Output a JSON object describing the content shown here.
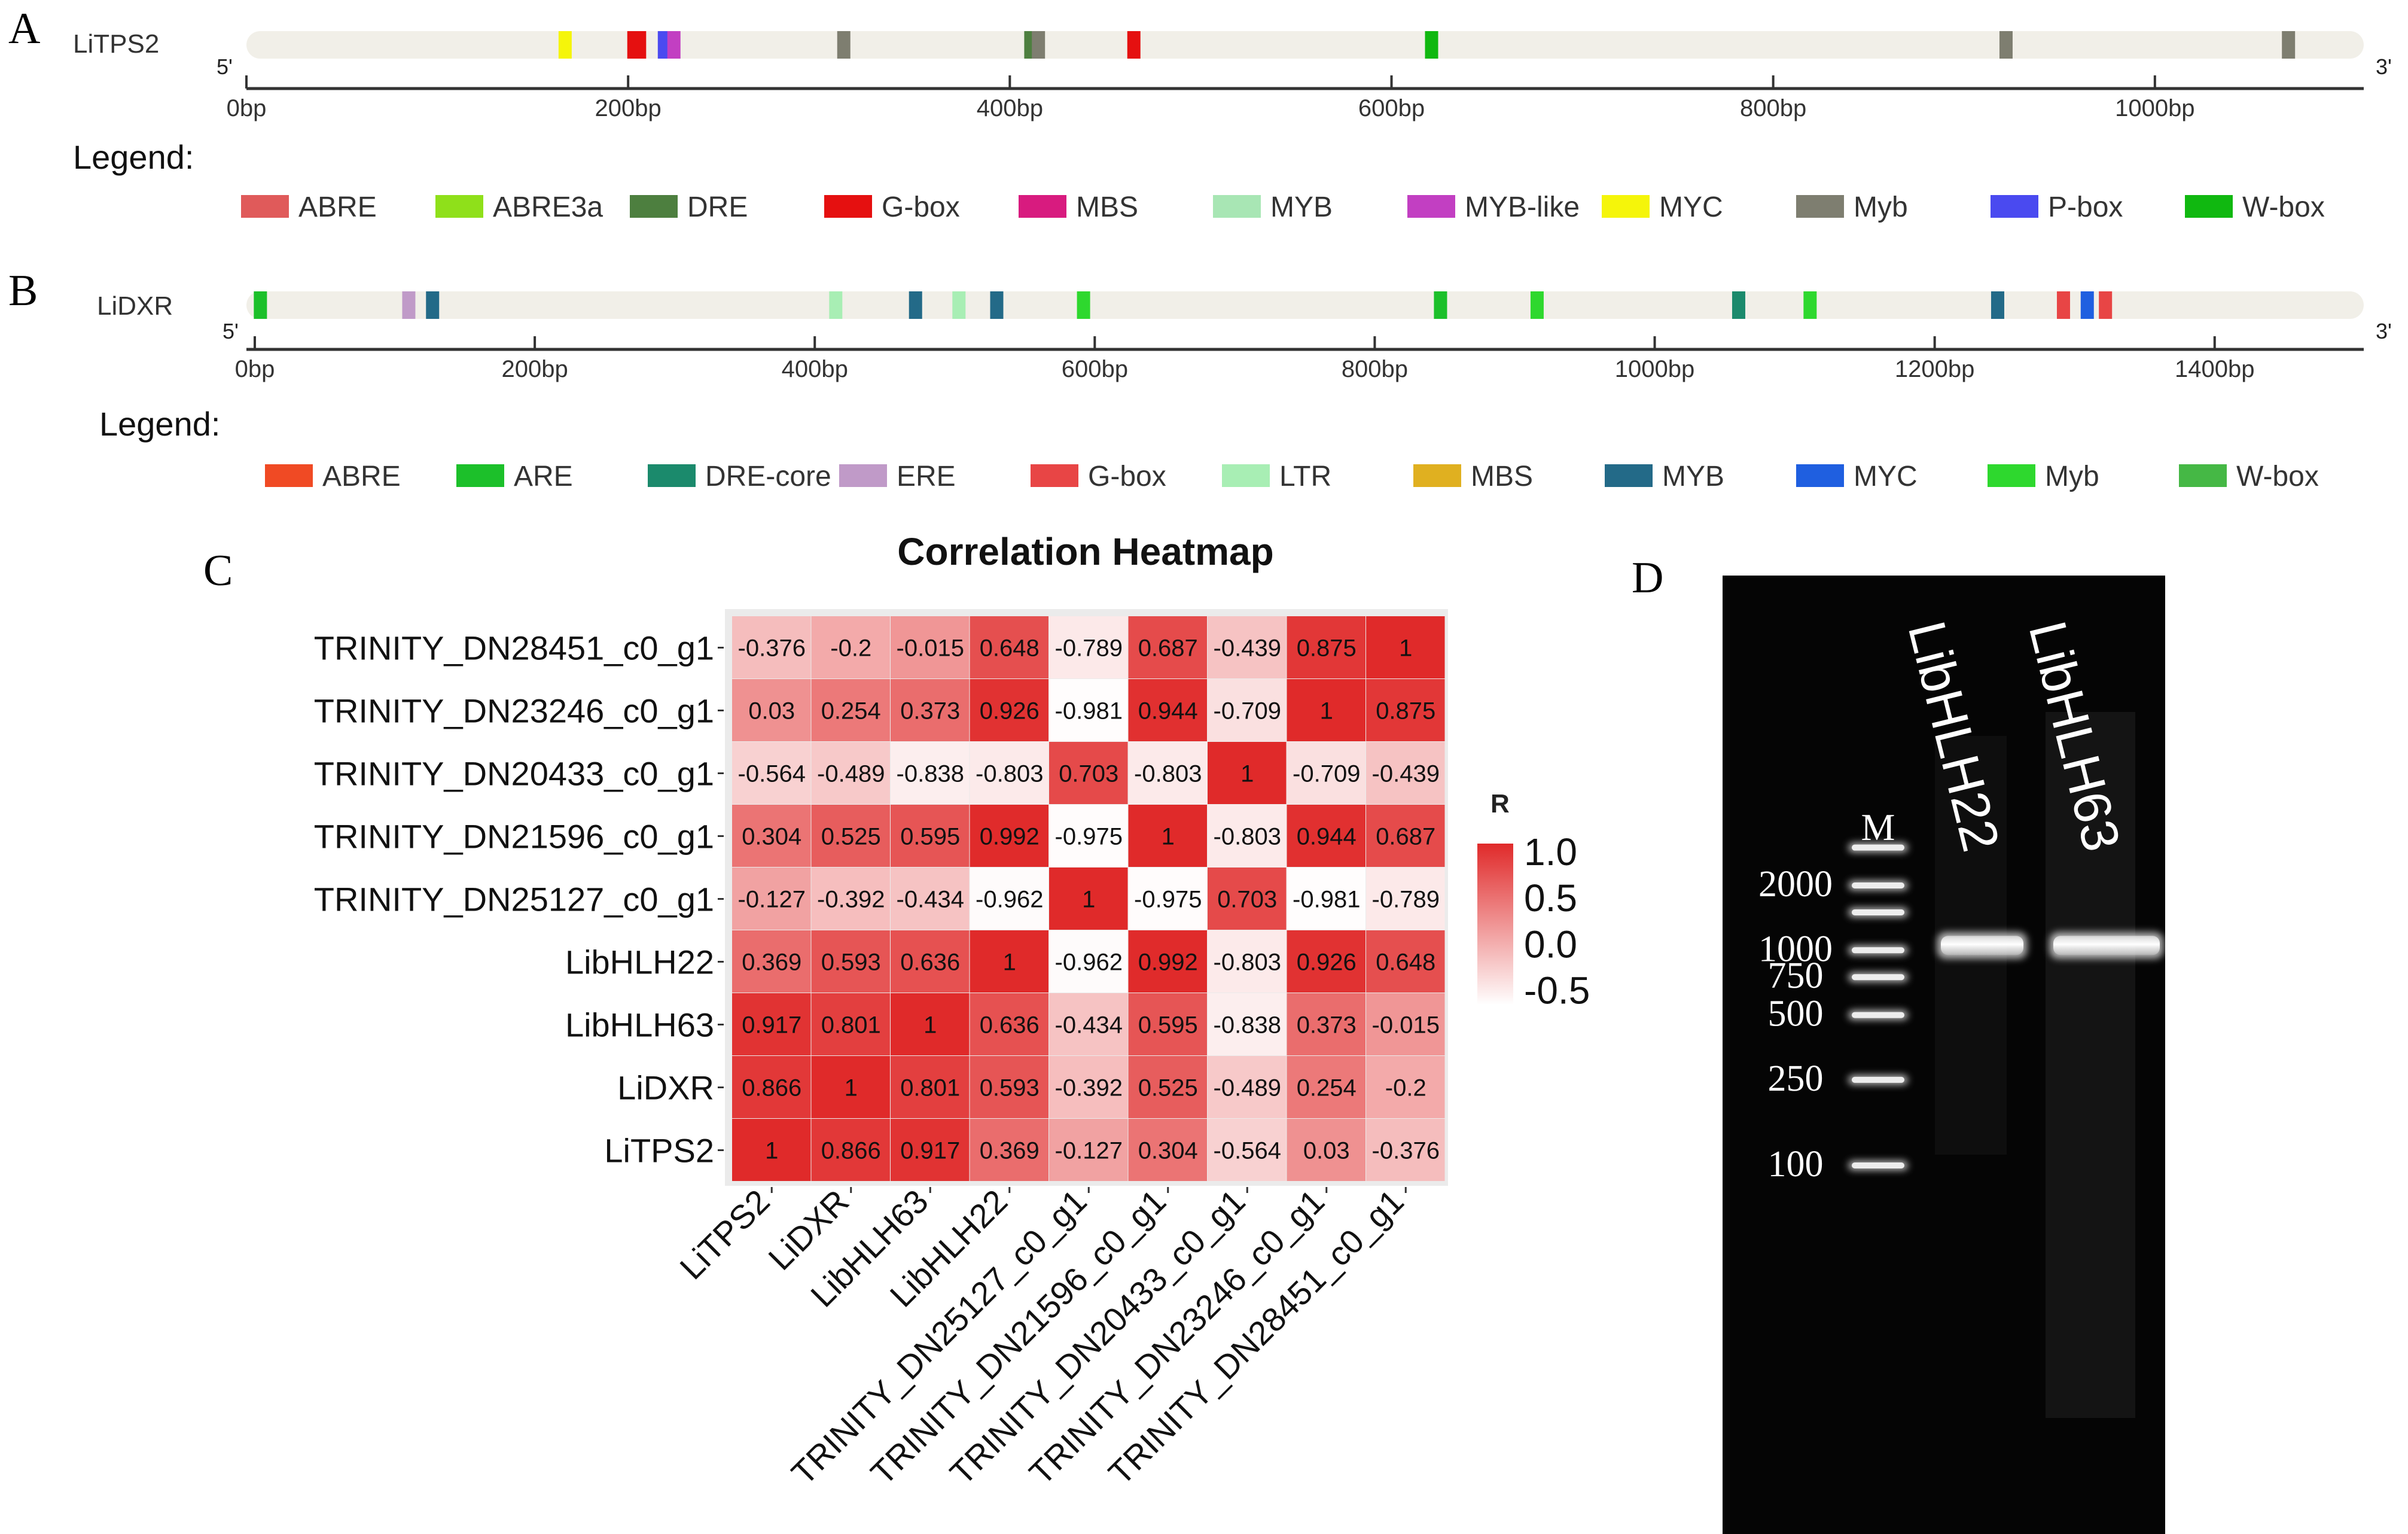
{
  "panels": {
    "A": "A",
    "B": "B",
    "C": "C",
    "D": "D"
  },
  "chart_data": [
    {
      "type": "promoter-map",
      "panel": "A",
      "gene": "LiTPS2",
      "five_prime": "5'",
      "three_prime": "3'",
      "length_bp": 1090,
      "ticks": [
        0,
        200,
        400,
        600,
        800,
        1000
      ],
      "tick_labels": [
        "0bp",
        "200bp",
        "400bp",
        "600bp",
        "800bp",
        "1000bp"
      ],
      "legend_title": "Legend:",
      "legend": [
        {
          "name": "ABRE",
          "color": "#e05a5a"
        },
        {
          "name": "ABRE3a",
          "color": "#8fe01a"
        },
        {
          "name": "DRE",
          "color": "#4d7f3f"
        },
        {
          "name": "G-box",
          "color": "#e51010"
        },
        {
          "name": "MBS",
          "color": "#d81b7f"
        },
        {
          "name": "MYB",
          "color": "#a8e6b4"
        },
        {
          "name": "MYB-like",
          "color": "#c23fc2"
        },
        {
          "name": "MYC",
          "color": "#f5f50a"
        },
        {
          "name": "Myb",
          "color": "#7e7e70"
        },
        {
          "name": "P-box",
          "color": "#4a4af0"
        },
        {
          "name": "W-box",
          "color": "#10b810"
        }
      ],
      "elements": [
        {
          "name": "MYC",
          "pos": 167
        },
        {
          "name": "G-box",
          "pos": 203
        },
        {
          "name": "G-box",
          "pos": 206
        },
        {
          "name": "P-box",
          "pos": 219
        },
        {
          "name": "MYB-like",
          "pos": 224
        },
        {
          "name": "Myb",
          "pos": 313
        },
        {
          "name": "DRE",
          "pos": 411
        },
        {
          "name": "Myb",
          "pos": 415
        },
        {
          "name": "G-box",
          "pos": 465
        },
        {
          "name": "W-box",
          "pos": 621
        },
        {
          "name": "Myb",
          "pos": 922
        },
        {
          "name": "Myb",
          "pos": 1070
        }
      ]
    },
    {
      "type": "promoter-map",
      "panel": "B",
      "gene": "LiDXR",
      "five_prime": "5'",
      "three_prime": "3'",
      "length_bp": 1480,
      "ticks": [
        0,
        200,
        400,
        600,
        800,
        1000,
        1200,
        1400
      ],
      "tick_labels": [
        "0bp",
        "200bp",
        "400bp",
        "600bp",
        "800bp",
        "1000bp",
        "1200bp",
        "1400bp"
      ],
      "legend_title": "Legend:",
      "legend": [
        {
          "name": "ABRE",
          "color": "#f04a24"
        },
        {
          "name": "ARE",
          "color": "#1cc02a"
        },
        {
          "name": "DRE-core",
          "color": "#1b8a6c"
        },
        {
          "name": "ERE",
          "color": "#c09ac8"
        },
        {
          "name": "G-box",
          "color": "#e84545"
        },
        {
          "name": "LTR",
          "color": "#a8eeb4"
        },
        {
          "name": "MBS",
          "color": "#e0b020"
        },
        {
          "name": "MYB",
          "color": "#236a88"
        },
        {
          "name": "MYC",
          "color": "#1f5fe0"
        },
        {
          "name": "Myb",
          "color": "#2ed82e"
        },
        {
          "name": "W-box",
          "color": "#45b845"
        }
      ],
      "elements": [
        {
          "name": "ARE",
          "pos": 4
        },
        {
          "name": "ERE",
          "pos": 110
        },
        {
          "name": "MYB",
          "pos": 127
        },
        {
          "name": "LTR",
          "pos": 415
        },
        {
          "name": "MYB",
          "pos": 472
        },
        {
          "name": "LTR",
          "pos": 503
        },
        {
          "name": "MYB",
          "pos": 530
        },
        {
          "name": "Myb",
          "pos": 592
        },
        {
          "name": "ARE",
          "pos": 847
        },
        {
          "name": "Myb",
          "pos": 916
        },
        {
          "name": "DRE-core",
          "pos": 1060
        },
        {
          "name": "Myb",
          "pos": 1111
        },
        {
          "name": "MYB",
          "pos": 1245
        },
        {
          "name": "G-box",
          "pos": 1292
        },
        {
          "name": "MYC",
          "pos": 1309
        },
        {
          "name": "G-box",
          "pos": 1322
        }
      ]
    },
    {
      "type": "heatmap",
      "panel": "C",
      "title": "Correlation Heatmap",
      "row_labels": [
        "TRINITY_DN28451_c0_g1",
        "TRINITY_DN23246_c0_g1",
        "TRINITY_DN20433_c0_g1",
        "TRINITY_DN21596_c0_g1",
        "TRINITY_DN25127_c0_g1",
        "LibHLH22",
        "LibHLH63",
        "LiDXR",
        "LiTPS2"
      ],
      "col_labels": [
        "LiTPS2",
        "LiDXR",
        "LibHLH63",
        "LibHLH22",
        "TRINITY_DN25127_c0_g1",
        "TRINITY_DN21596_c0_g1",
        "TRINITY_DN20433_c0_g1",
        "TRINITY_DN23246_c0_g1",
        "TRINITY_DN28451_c0_g1"
      ],
      "values": [
        [
          "-0.376",
          "-0.2",
          "-0.015",
          "0.648",
          "-0.789",
          "0.687",
          "-0.439",
          "0.875",
          "1"
        ],
        [
          "0.03",
          "0.254",
          "0.373",
          "0.926",
          "-0.981",
          "0.944",
          "-0.709",
          "1",
          "0.875"
        ],
        [
          "-0.564",
          "-0.489",
          "-0.838",
          "-0.803",
          "0.703",
          "-0.803",
          "1",
          "-0.709",
          "-0.439"
        ],
        [
          "0.304",
          "0.525",
          "0.595",
          "0.992",
          "-0.975",
          "1",
          "-0.803",
          "0.944",
          "0.687"
        ],
        [
          "-0.127",
          "-0.392",
          "-0.434",
          "-0.962",
          "1",
          "-0.975",
          "0.703",
          "-0.981",
          "-0.789"
        ],
        [
          "0.369",
          "0.593",
          "0.636",
          "1",
          "-0.962",
          "0.992",
          "-0.803",
          "0.926",
          "0.648"
        ],
        [
          "0.917",
          "0.801",
          "1",
          "0.636",
          "-0.434",
          "0.595",
          "-0.838",
          "0.373",
          "-0.015"
        ],
        [
          "0.866",
          "1",
          "0.801",
          "0.593",
          "-0.392",
          "0.525",
          "-0.489",
          "0.254",
          "-0.2"
        ],
        [
          "1",
          "0.866",
          "0.917",
          "0.369",
          "-0.127",
          "0.304",
          "-0.564",
          "0.03",
          "-0.376"
        ]
      ],
      "color_low": "#ffffff",
      "color_high": "#e02a2a",
      "range": [
        -1,
        1
      ],
      "legend_title": "R",
      "legend_ticks": [
        1.0,
        0.5,
        0.0,
        -0.5
      ],
      "legend_tick_labels": [
        "1.0",
        "0.5",
        "0.0",
        "-0.5"
      ]
    },
    {
      "type": "gel",
      "panel": "D",
      "marker_label": "M",
      "lanes": [
        "LibHLH22",
        "LibHLH63"
      ],
      "ladder_bp": [
        2000,
        1000,
        750,
        500,
        250,
        100
      ],
      "ladder_labels": [
        "2000",
        "1000",
        "750",
        "500",
        "250",
        "100"
      ],
      "band_size_bp": 1000
    }
  ]
}
